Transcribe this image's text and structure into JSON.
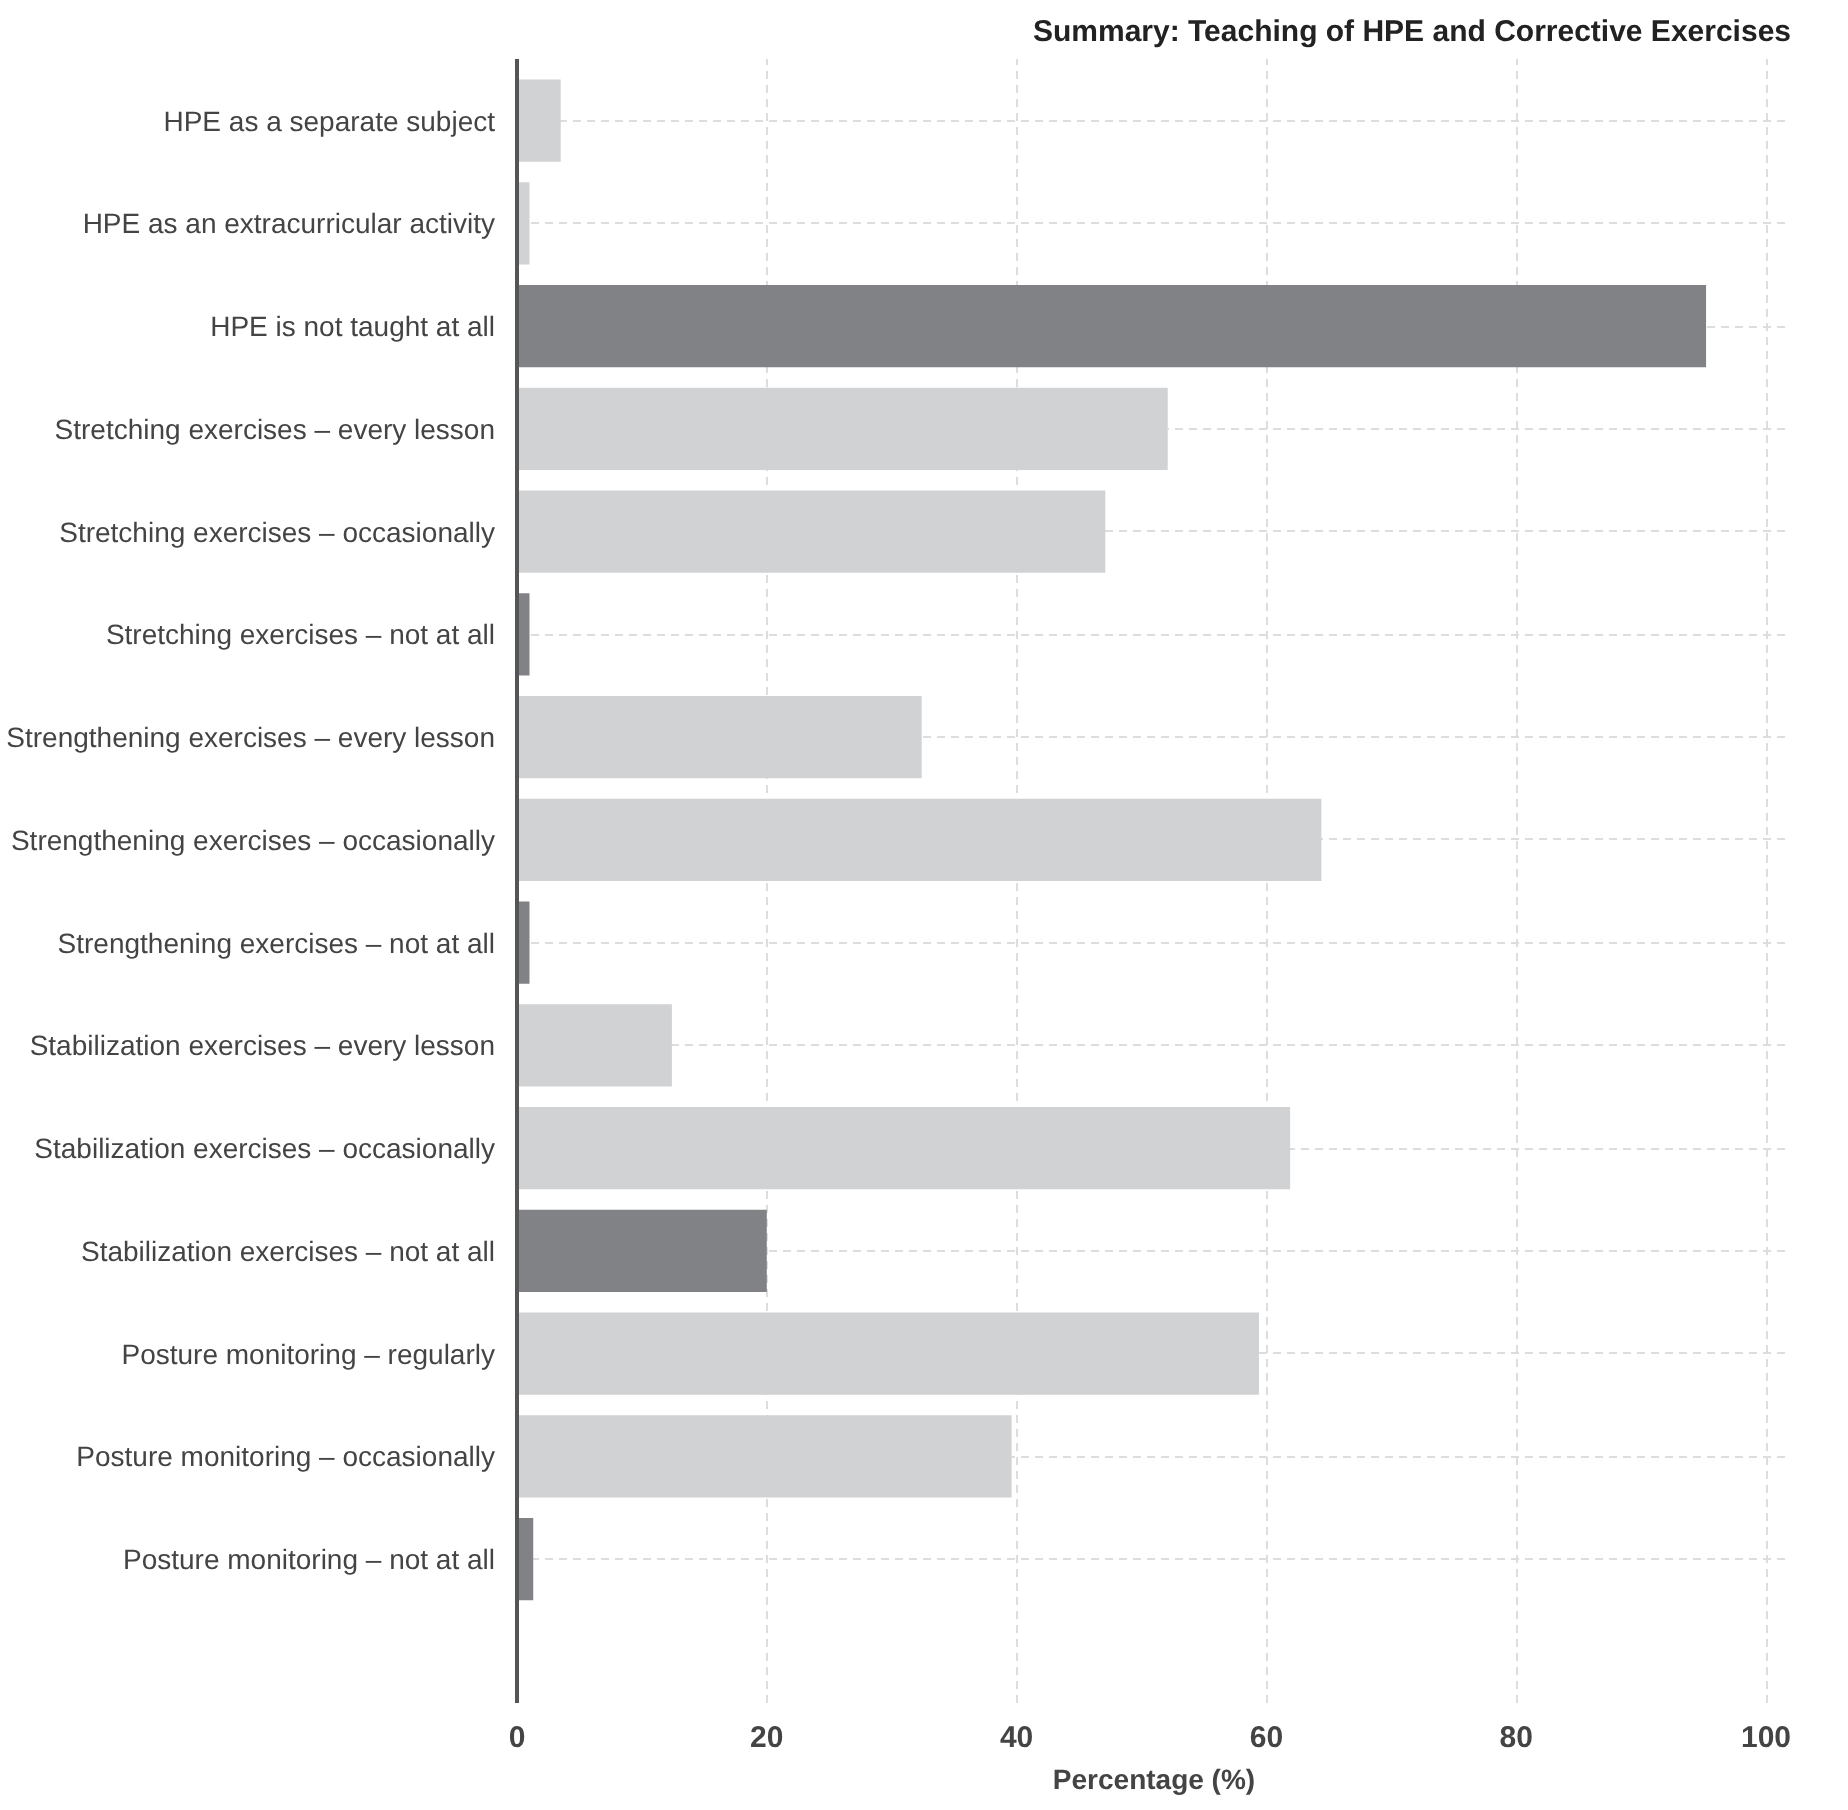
{
  "chart_data": {
    "type": "bar",
    "orientation": "horizontal",
    "title": "Summary: Teaching of HPE and Corrective Exercises",
    "xlabel": "Percentage (%)",
    "categories": [
      "HPE as a separate subject",
      "HPE as an extracurricular activity",
      "HPE is not taught at all",
      "Stretching exercises – every lesson",
      "Stretching exercises – occasionally",
      "Stretching exercises – not at all",
      "Strengthening exercises – every lesson",
      "Strengthening exercises – occasionally",
      "Strengthening exercises – not at all",
      "Stabilization exercises – every lesson",
      "Stabilization exercises – occasionally",
      "Stabilization exercises – not at all",
      "Posture monitoring – regularly",
      "Posture monitoring – occasionally",
      "Posture monitoring – not at all"
    ],
    "values": [
      3.5,
      1,
      95.2,
      52.1,
      47.1,
      1,
      32.4,
      64.4,
      1,
      12.4,
      61.9,
      20,
      59.4,
      39.6,
      1.3
    ],
    "colors": [
      "#d1d2d4",
      "#d1d2d4",
      "#808285",
      "#d1d2d4",
      "#d1d2d4",
      "#808285",
      "#d1d2d4",
      "#d1d2d4",
      "#808285",
      "#d1d2d4",
      "#d1d2d4",
      "#808285",
      "#d1d2d4",
      "#d1d2d4",
      "#808285"
    ],
    "xlim": [
      0,
      102
    ],
    "xticks": [
      0,
      20,
      40,
      60,
      80,
      100
    ],
    "grid": true
  }
}
